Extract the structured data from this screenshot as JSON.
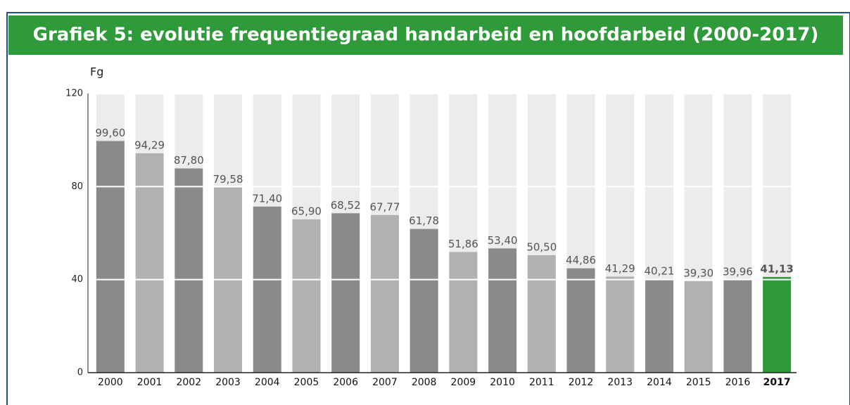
{
  "chart_data": {
    "type": "bar",
    "title": "Grafiek 5: evolutie frequentiegraad handarbeid en hoofdarbeid (2000-2017)",
    "y_label": "Fg",
    "categories": [
      "2000",
      "2001",
      "2002",
      "2003",
      "2004",
      "2005",
      "2006",
      "2007",
      "2008",
      "2009",
      "2010",
      "2011",
      "2012",
      "2013",
      "2014",
      "2015",
      "2016",
      "2017"
    ],
    "values": [
      99.6,
      94.29,
      87.8,
      79.58,
      71.4,
      65.9,
      68.52,
      67.77,
      61.78,
      51.86,
      53.4,
      50.5,
      44.86,
      41.29,
      40.21,
      39.3,
      39.96,
      41.13
    ],
    "value_labels": [
      "99,60",
      "94,29",
      "87,80",
      "79,58",
      "71,40",
      "65,90",
      "68,52",
      "67,77",
      "61,78",
      "51,86",
      "53,40",
      "50,50",
      "44,86",
      "41,29",
      "40,21",
      "39,30",
      "39,96",
      "41,13"
    ],
    "colors": [
      "#8a8a8a",
      "#b1b1b1",
      "#8a8a8a",
      "#b1b1b1",
      "#8a8a8a",
      "#b1b1b1",
      "#8a8a8a",
      "#b1b1b1",
      "#8a8a8a",
      "#b1b1b1",
      "#8a8a8a",
      "#b1b1b1",
      "#8a8a8a",
      "#b1b1b1",
      "#8a8a8a",
      "#b1b1b1",
      "#8a8a8a",
      "#2e9a3a"
    ],
    "ylim": [
      0,
      120
    ],
    "yticks": [
      0,
      40,
      80,
      120
    ],
    "grid": true
  }
}
